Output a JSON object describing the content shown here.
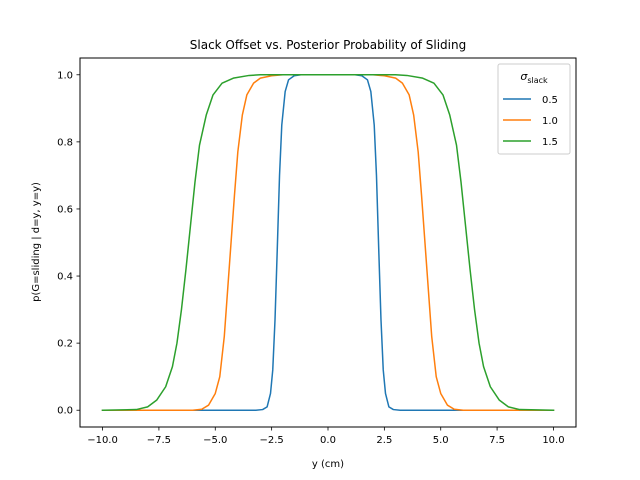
{
  "chart_data": {
    "type": "line",
    "title": "Slack Offset vs. Posterior Probability of Sliding",
    "xlabel": "y (cm)",
    "ylabel": "p(G=sliding | d=y, y=y)",
    "xlim": [
      -11,
      11
    ],
    "ylim": [
      -0.05,
      1.05
    ],
    "x_ticks": [
      -10.0,
      -7.5,
      -5.0,
      -2.5,
      0.0,
      2.5,
      5.0,
      7.5,
      10.0
    ],
    "x_tick_labels": [
      "−10.0",
      "−7.5",
      "−5.0",
      "−2.5",
      "0.0",
      "2.5",
      "5.0",
      "7.5",
      "10.0"
    ],
    "y_ticks": [
      0.0,
      0.2,
      0.4,
      0.6,
      0.8,
      1.0
    ],
    "y_tick_labels": [
      "0.0",
      "0.2",
      "0.4",
      "0.6",
      "0.8",
      "1.0"
    ],
    "grid": false,
    "legend": {
      "placement": "top-right",
      "title_main": "σ",
      "title_sub": "slack"
    },
    "series": [
      {
        "name": "0.5",
        "color": "#1f77b4",
        "points": [
          [
            -10,
            0
          ],
          [
            -3.2,
            0
          ],
          [
            -2.9,
            0.002
          ],
          [
            -2.7,
            0.01
          ],
          [
            -2.55,
            0.05
          ],
          [
            -2.45,
            0.12
          ],
          [
            -2.35,
            0.27
          ],
          [
            -2.25,
            0.48
          ],
          [
            -2.15,
            0.7
          ],
          [
            -2.05,
            0.85
          ],
          [
            -1.9,
            0.95
          ],
          [
            -1.75,
            0.985
          ],
          [
            -1.5,
            0.997
          ],
          [
            -1.2,
            1.0
          ],
          [
            1.2,
            1.0
          ],
          [
            1.5,
            0.997
          ],
          [
            1.75,
            0.985
          ],
          [
            1.9,
            0.95
          ],
          [
            2.05,
            0.85
          ],
          [
            2.15,
            0.7
          ],
          [
            2.25,
            0.48
          ],
          [
            2.35,
            0.27
          ],
          [
            2.45,
            0.12
          ],
          [
            2.55,
            0.05
          ],
          [
            2.7,
            0.01
          ],
          [
            2.9,
            0.002
          ],
          [
            3.2,
            0
          ],
          [
            10,
            0
          ]
        ]
      },
      {
        "name": "1.0",
        "color": "#ff7f0e",
        "points": [
          [
            -10,
            0
          ],
          [
            -6.0,
            0
          ],
          [
            -5.6,
            0.003
          ],
          [
            -5.3,
            0.015
          ],
          [
            -5.0,
            0.05
          ],
          [
            -4.8,
            0.1
          ],
          [
            -4.6,
            0.22
          ],
          [
            -4.45,
            0.36
          ],
          [
            -4.3,
            0.5
          ],
          [
            -4.15,
            0.64
          ],
          [
            -4.0,
            0.77
          ],
          [
            -3.8,
            0.88
          ],
          [
            -3.6,
            0.94
          ],
          [
            -3.3,
            0.975
          ],
          [
            -3.0,
            0.99
          ],
          [
            -2.5,
            0.997
          ],
          [
            -2.0,
            1.0
          ],
          [
            2.0,
            1.0
          ],
          [
            2.5,
            0.997
          ],
          [
            3.0,
            0.99
          ],
          [
            3.3,
            0.975
          ],
          [
            3.6,
            0.94
          ],
          [
            3.8,
            0.88
          ],
          [
            4.0,
            0.77
          ],
          [
            4.15,
            0.64
          ],
          [
            4.3,
            0.5
          ],
          [
            4.45,
            0.36
          ],
          [
            4.6,
            0.22
          ],
          [
            4.8,
            0.1
          ],
          [
            5.0,
            0.05
          ],
          [
            5.3,
            0.015
          ],
          [
            5.6,
            0.003
          ],
          [
            6.0,
            0
          ],
          [
            10,
            0
          ]
        ]
      },
      {
        "name": "1.5",
        "color": "#2ca02c",
        "points": [
          [
            -10,
            0
          ],
          [
            -8.5,
            0.002
          ],
          [
            -8.0,
            0.01
          ],
          [
            -7.6,
            0.03
          ],
          [
            -7.2,
            0.07
          ],
          [
            -6.9,
            0.13
          ],
          [
            -6.7,
            0.2
          ],
          [
            -6.5,
            0.3
          ],
          [
            -6.3,
            0.42
          ],
          [
            -6.1,
            0.55
          ],
          [
            -5.9,
            0.68
          ],
          [
            -5.7,
            0.79
          ],
          [
            -5.4,
            0.88
          ],
          [
            -5.1,
            0.94
          ],
          [
            -4.7,
            0.975
          ],
          [
            -4.2,
            0.99
          ],
          [
            -3.5,
            0.998
          ],
          [
            -3.0,
            1.0
          ],
          [
            3.0,
            1.0
          ],
          [
            3.5,
            0.998
          ],
          [
            4.2,
            0.99
          ],
          [
            4.7,
            0.975
          ],
          [
            5.1,
            0.94
          ],
          [
            5.4,
            0.88
          ],
          [
            5.7,
            0.79
          ],
          [
            5.9,
            0.68
          ],
          [
            6.1,
            0.55
          ],
          [
            6.3,
            0.42
          ],
          [
            6.5,
            0.3
          ],
          [
            6.7,
            0.2
          ],
          [
            6.9,
            0.13
          ],
          [
            7.2,
            0.07
          ],
          [
            7.6,
            0.03
          ],
          [
            8.0,
            0.01
          ],
          [
            8.5,
            0.002
          ],
          [
            10,
            0
          ]
        ]
      }
    ]
  }
}
